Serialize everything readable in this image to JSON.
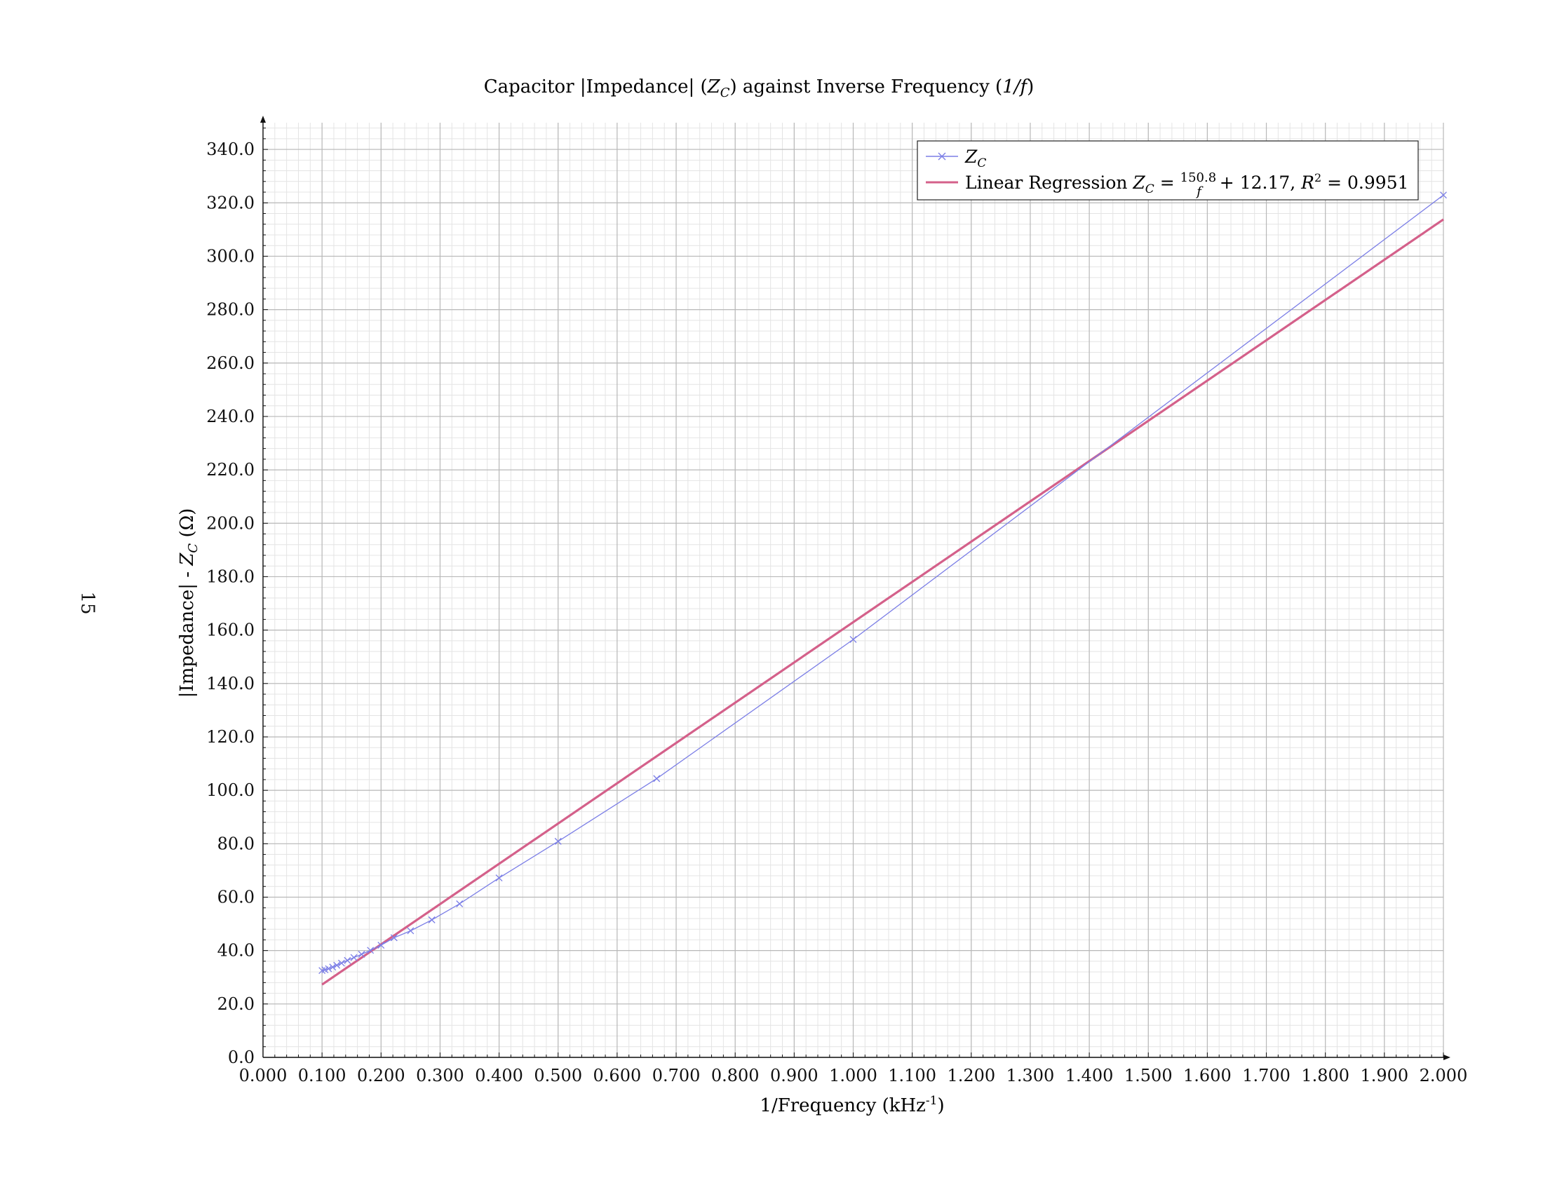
{
  "page_number": "15",
  "chart_data": {
    "type": "line",
    "title": "Capacitor |Impedance| (Z_C) against Inverse Frequency (1/f)",
    "xlabel": "1/Frequency (kHz⁻¹)",
    "ylabel": "|Impedance| - Z_C (Ω)",
    "xlim": [
      0.0,
      2.0
    ],
    "ylim": [
      0.0,
      350.0
    ],
    "x_ticks": [
      "0.000",
      "0.100",
      "0.200",
      "0.300",
      "0.400",
      "0.500",
      "0.600",
      "0.700",
      "0.800",
      "0.900",
      "1.000",
      "1.100",
      "1.200",
      "1.300",
      "1.400",
      "1.500",
      "1.600",
      "1.700",
      "1.800",
      "1.900",
      "2.000"
    ],
    "y_ticks": [
      "0.0",
      "20.0",
      "40.0",
      "60.0",
      "80.0",
      "100.0",
      "120.0",
      "140.0",
      "160.0",
      "180.0",
      "200.0",
      "220.0",
      "240.0",
      "260.0",
      "280.0",
      "300.0",
      "320.0",
      "340.0"
    ],
    "grid": true,
    "legend_position": "top-right",
    "series": [
      {
        "name": "Z_C",
        "color": "#7b7ee6",
        "marker": "x",
        "x": [
          0.1,
          0.105,
          0.111,
          0.118,
          0.125,
          0.133,
          0.143,
          0.154,
          0.167,
          0.182,
          0.2,
          0.222,
          0.25,
          0.286,
          0.333,
          0.4,
          0.5,
          0.667,
          1.0,
          2.0
        ],
        "y": [
          32.5,
          32.8,
          33.2,
          33.8,
          34.5,
          35.3,
          36.3,
          37.4,
          38.6,
          40.1,
          42.0,
          44.8,
          47.4,
          51.5,
          57.5,
          67.2,
          80.9,
          104.4,
          156.5,
          322.9
        ]
      },
      {
        "name": "Linear Regression",
        "legend_label": "Linear Regression Z_C = 150.8/f + 12.17,   R² = 0.9951",
        "color": "#d4608a",
        "slope": 150.8,
        "intercept": 12.17,
        "x": [
          0.1,
          2.0
        ],
        "y": [
          27.25,
          313.77
        ]
      }
    ]
  }
}
